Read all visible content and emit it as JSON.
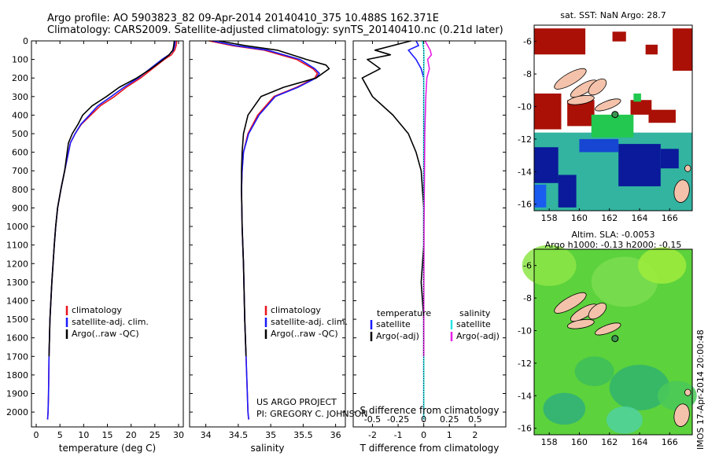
{
  "header": {
    "line1": "Argo profile: AO 5903823_82 09-Apr-2014 20140410_375 10.488S 162.371E",
    "line2": "Climatology: CARS2009. Satellite-adjusted climatology: synTS_20140410.nc (0.21d later)"
  },
  "colors": {
    "red": "#e8141e",
    "blue": "#1a1aff",
    "black": "#000000",
    "magenta": "#e81ee8",
    "cyan": "#28e6e6",
    "land": "#f4c2aa"
  },
  "chart_data": [
    {
      "type": "line",
      "id": "temperature",
      "xlabel": "temperature (deg C)",
      "ylabel": "",
      "xlim": [
        -1,
        31
      ],
      "ylim": [
        2080,
        0
      ],
      "xticks": [
        "0",
        "5",
        "10",
        "15",
        "20",
        "25",
        "30"
      ],
      "yticks": [
        "0",
        "100",
        "200",
        "300",
        "400",
        "500",
        "600",
        "700",
        "800",
        "900",
        "1000",
        "1100",
        "1200",
        "1300",
        "1400",
        "1500",
        "1600",
        "1700",
        "1800",
        "1900",
        "2000"
      ],
      "legend": [
        "climatology",
        "satellite-adj. clim.",
        "Argo(..raw -QC)"
      ],
      "series": [
        {
          "name": "climatology",
          "x": [
            29.6,
            29.5,
            29.2,
            28.5,
            27,
            24.5,
            22,
            19,
            16.5,
            13.5,
            11.5,
            9.5,
            8.2,
            7.2,
            6,
            5.2,
            4.5,
            4.1,
            3.8,
            3.3,
            2.9,
            2.7,
            2.6,
            2.5,
            2.4
          ],
          "y": [
            0,
            25,
            50,
            75,
            100,
            150,
            200,
            250,
            300,
            350,
            400,
            450,
            500,
            550,
            700,
            800,
            900,
            1000,
            1100,
            1300,
            1500,
            1700,
            1900,
            2000,
            2040
          ]
        },
        {
          "name": "satellite-adj. clim.",
          "x": [
            29.3,
            29.2,
            28.9,
            28,
            26.5,
            24,
            21.5,
            18.5,
            15.8,
            13,
            11.2,
            9.4,
            8.2,
            7.2,
            6,
            5.2,
            4.5,
            4.1,
            3.8,
            3.3,
            2.9,
            2.7,
            2.6,
            2.5,
            2.4
          ],
          "y": [
            0,
            25,
            50,
            75,
            100,
            150,
            200,
            250,
            300,
            350,
            400,
            450,
            500,
            550,
            700,
            800,
            900,
            1000,
            1100,
            1300,
            1500,
            1700,
            1900,
            2000,
            2040
          ]
        },
        {
          "name": "Argo(..raw -QC)",
          "x": [
            29.1,
            29,
            28.8,
            28,
            26.8,
            24.2,
            21.2,
            17.5,
            14.8,
            11.8,
            9.8,
            8.8,
            7.6,
            6.8,
            6,
            5.2,
            4.5,
            4.1,
            3.8,
            3.3,
            2.9,
            2.7
          ],
          "y": [
            0,
            25,
            50,
            75,
            100,
            150,
            200,
            250,
            300,
            350,
            400,
            450,
            500,
            550,
            700,
            800,
            900,
            1000,
            1100,
            1300,
            1500,
            1700
          ]
        }
      ]
    },
    {
      "type": "line",
      "id": "salinity",
      "xlabel": "salinity",
      "ylabel": "",
      "xlim": [
        33.75,
        36.15
      ],
      "ylim": [
        2080,
        0
      ],
      "xticks": [
        "34",
        "34.5",
        "35",
        "35.5",
        "36"
      ],
      "legend": [
        "climatology",
        "satellite-adj. clim.",
        "Argo(..raw -QC)"
      ],
      "annotation": [
        "US ARGO PROJECT",
        "PI: GREGORY C. JOHNSON"
      ],
      "series": [
        {
          "name": "climatology",
          "x": [
            34.05,
            34.4,
            34.9,
            35.4,
            35.65,
            35.72,
            35.68,
            35.4,
            35.05,
            34.8,
            34.65,
            34.58,
            34.56,
            34.55,
            34.56,
            34.58,
            34.6,
            34.63,
            34.65,
            34.66
          ],
          "y": [
            0,
            25,
            50,
            100,
            150,
            175,
            200,
            250,
            300,
            400,
            500,
            600,
            700,
            800,
            1000,
            1200,
            1500,
            1800,
            2000,
            2040
          ]
        },
        {
          "name": "satellite-adj. clim.",
          "x": [
            34.1,
            34.45,
            34.95,
            35.45,
            35.68,
            35.75,
            35.7,
            35.42,
            35.07,
            34.82,
            34.66,
            34.58,
            34.56,
            34.55,
            34.56,
            34.58,
            34.6,
            34.63,
            34.65,
            34.66
          ],
          "y": [
            0,
            25,
            50,
            100,
            150,
            175,
            200,
            250,
            300,
            400,
            500,
            600,
            700,
            800,
            1000,
            1200,
            1500,
            1800,
            2000,
            2040
          ]
        },
        {
          "name": "Argo(..raw -QC)",
          "x": [
            34.2,
            34.6,
            35.1,
            35.55,
            35.85,
            35.9,
            35.7,
            35.2,
            34.85,
            34.65,
            34.58,
            34.56,
            34.55,
            34.55,
            34.56,
            34.58,
            34.6,
            34.62
          ],
          "y": [
            0,
            25,
            50,
            100,
            130,
            150,
            200,
            250,
            300,
            400,
            500,
            600,
            700,
            800,
            1000,
            1200,
            1500,
            1700
          ]
        }
      ]
    },
    {
      "type": "line",
      "id": "differences",
      "xlabel": "T difference from climatology",
      "x2label": "S difference from climatology",
      "xlim": [
        -2.75,
        3.2
      ],
      "ylim": [
        2080,
        0
      ],
      "xticks": [
        "-2",
        "-1",
        "0",
        "1",
        "2"
      ],
      "x2ticks": [
        "-0.5",
        "-0.25",
        "0",
        "0.25",
        "0.5"
      ],
      "legend": [
        [
          "temperature",
          "satellite",
          "Argo(-adj)"
        ],
        [
          "salinity",
          "satellite",
          "Argo(-adj)"
        ]
      ],
      "series": [
        {
          "name": "temperature satellite",
          "x": [
            -0.3,
            -0.2,
            -0.6,
            -0.3,
            -0.1,
            0,
            0,
            0,
            0,
            0,
            0,
            0
          ],
          "y": [
            0,
            25,
            50,
            100,
            150,
            200,
            300,
            500,
            800,
            1200,
            1700,
            2040
          ]
        },
        {
          "name": "temperature Argo(-adj)",
          "x": [
            -0.5,
            -1.9,
            -1.3,
            -2.2,
            -1.7,
            -2.4,
            -2,
            -1.2,
            -0.6,
            -0.3,
            -0.1,
            -0.05,
            0,
            0,
            -0.1,
            0,
            0
          ],
          "y": [
            0,
            50,
            75,
            100,
            150,
            200,
            300,
            400,
            500,
            600,
            700,
            800,
            900,
            1100,
            1300,
            1500,
            1700
          ]
        },
        {
          "name": "salinity satellite",
          "x": [
            -0.05,
            0,
            0.01,
            0,
            0,
            0,
            0,
            0,
            0,
            0,
            0
          ],
          "y": [
            0,
            50,
            100,
            150,
            200,
            300,
            500,
            800,
            1200,
            1700,
            2040
          ]
        },
        {
          "name": "salinity Argo(-adj)",
          "x": [
            0.05,
            0.25,
            0.3,
            0.15,
            0.22,
            0.12,
            0.08,
            0.04,
            0.03,
            0.01,
            0,
            0
          ],
          "y": [
            0,
            50,
            75,
            100,
            150,
            200,
            300,
            500,
            700,
            1000,
            1400,
            1700
          ]
        }
      ]
    },
    {
      "type": "heatmap",
      "id": "sst-map",
      "title": "sat. SST: NaN Argo: 28.7",
      "xticks": [
        "158",
        "160",
        "162",
        "164",
        "166"
      ],
      "yticks": [
        "-6",
        "-8",
        "-10",
        "-12",
        "-14",
        "-16"
      ]
    },
    {
      "type": "heatmap",
      "id": "sla-map",
      "title": "Altim. SLA: -0.0053",
      "subtitle": "Argo h1000: -0.13 h2000: -0.15",
      "xticks": [
        "158",
        "160",
        "162",
        "164",
        "166"
      ],
      "yticks": [
        "-6",
        "-8",
        "-10",
        "-12",
        "-14",
        "-16"
      ]
    }
  ],
  "footer": {
    "stamp": "IMOS 17-Apr-2014 20:00:48"
  }
}
